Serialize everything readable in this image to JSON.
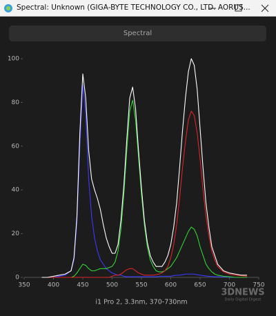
{
  "window": {
    "title": "Spectral: Unknown (GIGA-BYTE TECHNOLOGY CO., LTD. AORUS..."
  },
  "tab": "Spectral",
  "watermark": {
    "logo": "3DNEWS",
    "tagline": "Daily Digital Digest"
  },
  "chart_data": {
    "type": "line",
    "x_label": "i1 Pro 2, 3.3nm, 370-730nm",
    "x": [
      380,
      390,
      400,
      410,
      420,
      430,
      435,
      440,
      445,
      450,
      455,
      460,
      465,
      470,
      475,
      480,
      485,
      490,
      495,
      500,
      505,
      510,
      515,
      520,
      525,
      530,
      535,
      540,
      545,
      550,
      555,
      560,
      565,
      570,
      575,
      580,
      585,
      590,
      595,
      600,
      605,
      610,
      615,
      620,
      625,
      630,
      635,
      640,
      645,
      650,
      655,
      660,
      665,
      670,
      675,
      680,
      690,
      700,
      710,
      720,
      730
    ],
    "xlim": [
      350,
      750
    ],
    "xticks": [
      350,
      400,
      450,
      500,
      550,
      600,
      650,
      700,
      750
    ],
    "ylim": [
      0,
      100
    ],
    "yticks": [
      0,
      20,
      40,
      60,
      80,
      100
    ],
    "grid": false,
    "series": [
      {
        "name": "Blue",
        "color": "#3a3aff",
        "values": [
          0,
          0,
          0,
          0.5,
          1,
          3,
          8,
          25,
          60,
          88,
          75,
          45,
          28,
          18,
          12,
          8,
          6,
          4,
          3,
          2,
          1.5,
          1,
          1,
          0.5,
          0.3,
          0.3,
          0.3,
          0.3,
          0.3,
          0.3,
          0.3,
          0.3,
          0.3,
          0.3,
          0.3,
          0.5,
          0.5,
          0.5,
          0.5,
          0.5,
          0.8,
          1,
          1,
          1.2,
          1.5,
          1.5,
          1.5,
          1.5,
          1.2,
          1,
          0.8,
          0.6,
          0.5,
          0.4,
          0.3,
          0.3,
          0.2,
          0.1,
          0,
          0,
          0
        ]
      },
      {
        "name": "Green",
        "color": "#33d433",
        "values": [
          0,
          0,
          0,
          0,
          0,
          0,
          0.5,
          2,
          4,
          6,
          5.5,
          4,
          3,
          3,
          3.5,
          4,
          4,
          4,
          4.5,
          5,
          7,
          12,
          22,
          38,
          58,
          76,
          81,
          72,
          55,
          38,
          24,
          14,
          8,
          5,
          3,
          2.5,
          2.5,
          3,
          4,
          5,
          7,
          9,
          12,
          15,
          18,
          21,
          23,
          22,
          19,
          14,
          10,
          6,
          4,
          2.5,
          1.5,
          1,
          0.5,
          0.3,
          0,
          0,
          0
        ]
      },
      {
        "name": "Red",
        "color": "#e02424",
        "values": [
          0,
          0,
          0,
          0,
          0,
          0,
          0,
          0,
          0,
          0,
          0,
          0,
          0,
          0,
          0,
          0,
          0,
          0,
          0,
          0.5,
          1,
          1,
          1.5,
          2.5,
          3.5,
          4,
          4,
          3,
          2,
          1.5,
          1,
          1,
          1,
          1,
          1.2,
          1.5,
          2,
          3,
          5,
          9,
          15,
          24,
          36,
          50,
          62,
          72,
          76,
          74,
          66,
          54,
          40,
          28,
          19,
          12,
          8,
          5,
          2.5,
          1.5,
          1,
          0.8,
          0.5
        ]
      },
      {
        "name": "White",
        "color": "#ffffff",
        "values": [
          0,
          0,
          0.5,
          1,
          1.5,
          3,
          9,
          28,
          66,
          93,
          82,
          58,
          45,
          40,
          36,
          31,
          24,
          18,
          14,
          11,
          11,
          15,
          26,
          42,
          63,
          82,
          87,
          77,
          58,
          41,
          26,
          16,
          10,
          7,
          5,
          5,
          5,
          7,
          10,
          15,
          23,
          34,
          50,
          67,
          82,
          94,
          100,
          97,
          86,
          68,
          50,
          34,
          23,
          14,
          10,
          6,
          3,
          2,
          1.5,
          1,
          1
        ]
      }
    ]
  }
}
